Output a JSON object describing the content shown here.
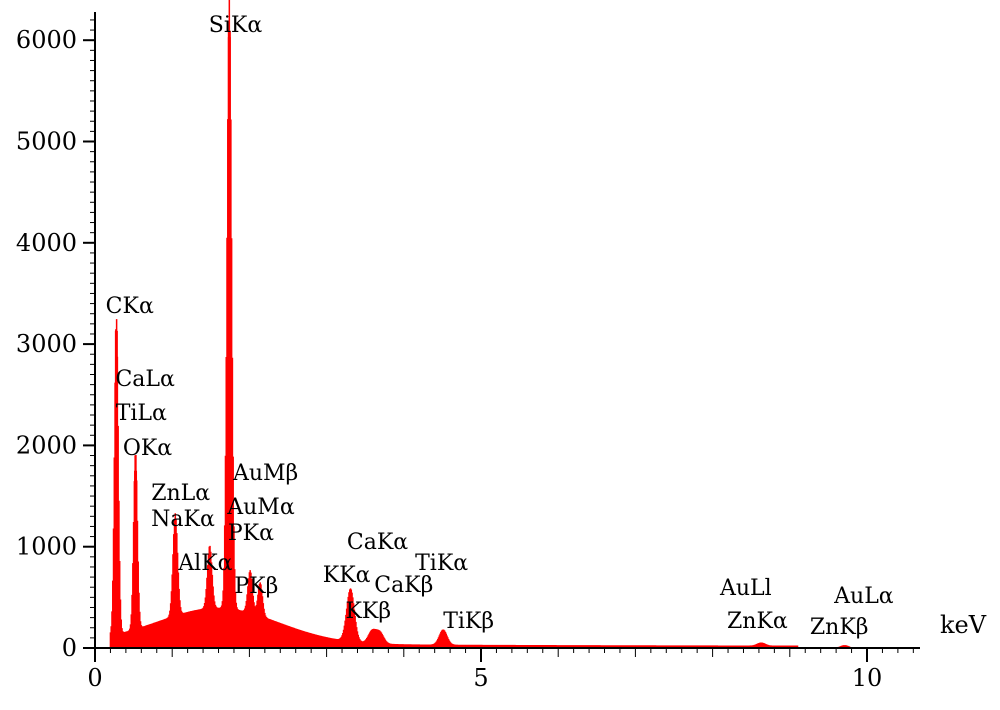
{
  "chart_data": {
    "type": "bar",
    "title": "",
    "xlabel": "keV",
    "ylabel": "",
    "xlim": [
      0,
      10.6
    ],
    "ylim": [
      0,
      6000
    ],
    "x_ticks": [
      {
        "value": 0,
        "label": "0"
      },
      {
        "value": 5,
        "label": "5"
      },
      {
        "value": 10,
        "label": "10"
      }
    ],
    "y_ticks": [
      {
        "value": 0,
        "label": "0"
      },
      {
        "value": 1000,
        "label": "1000"
      },
      {
        "value": 2000,
        "label": "2000"
      },
      {
        "value": 3000,
        "label": "3000"
      },
      {
        "value": 4000,
        "label": "4000"
      },
      {
        "value": 5000,
        "label": "5000"
      },
      {
        "value": 6000,
        "label": "6000"
      }
    ],
    "grid": false,
    "bar_color": "#ff0000",
    "peaks": [
      {
        "label": "CKα",
        "energy": 0.277,
        "counts": 3130
      },
      {
        "label": "OKα",
        "energy": 0.525,
        "counts": 1750
      },
      {
        "label": "NaKα",
        "energy": 1.04,
        "counts": 1010
      },
      {
        "label": "AlKα",
        "energy": 1.486,
        "counts": 620
      },
      {
        "label": "SiKα",
        "energy": 1.74,
        "counts": 6030
      },
      {
        "label": "PKα",
        "energy": 2.01,
        "counts": 420
      },
      {
        "label": "PKβ",
        "energy": 2.14,
        "counts": 330
      },
      {
        "label": "KKα",
        "energy": 3.31,
        "counts": 520
      },
      {
        "label": "KKβ",
        "energy": 3.59,
        "counts": 120
      },
      {
        "label": "CaKα",
        "energy": 3.69,
        "counts": 110
      },
      {
        "label": "TiKα",
        "energy": 4.51,
        "counts": 150
      },
      {
        "label": "ZnKα",
        "energy": 8.63,
        "counts": 30
      },
      {
        "label": "AuLα",
        "energy": 9.71,
        "counts": 25
      }
    ],
    "annotations": [
      {
        "text": "SiKα",
        "energy": 1.82
      },
      {
        "text": "CKα",
        "energy": 0.45
      },
      {
        "text": "CaLα",
        "energy": 0.65
      },
      {
        "text": "TiLα",
        "energy": 0.6
      },
      {
        "text": "OKα",
        "energy": 0.68
      },
      {
        "text": "ZnLα",
        "energy": 1.11
      },
      {
        "text": "NaKα",
        "energy": 1.14
      },
      {
        "text": "AuMβ",
        "energy": 2.21
      },
      {
        "text": "AuMα",
        "energy": 2.15
      },
      {
        "text": "PKα",
        "energy": 2.02
      },
      {
        "text": "AlKα",
        "energy": 1.43
      },
      {
        "text": "PKβ",
        "energy": 2.09
      },
      {
        "text": "CaKα",
        "energy": 3.66
      },
      {
        "text": "KKα",
        "energy": 3.26
      },
      {
        "text": "CaKβ",
        "energy": 4.0
      },
      {
        "text": "KKβ",
        "energy": 3.54
      },
      {
        "text": "TiKα",
        "energy": 4.49
      },
      {
        "text": "TiKβ",
        "energy": 4.84
      },
      {
        "text": "AuLl",
        "energy": 8.43
      },
      {
        "text": "ZnKα",
        "energy": 8.58
      },
      {
        "text": "AuLα",
        "energy": 9.96
      },
      {
        "text": "ZnKβ",
        "energy": 9.64
      }
    ]
  }
}
